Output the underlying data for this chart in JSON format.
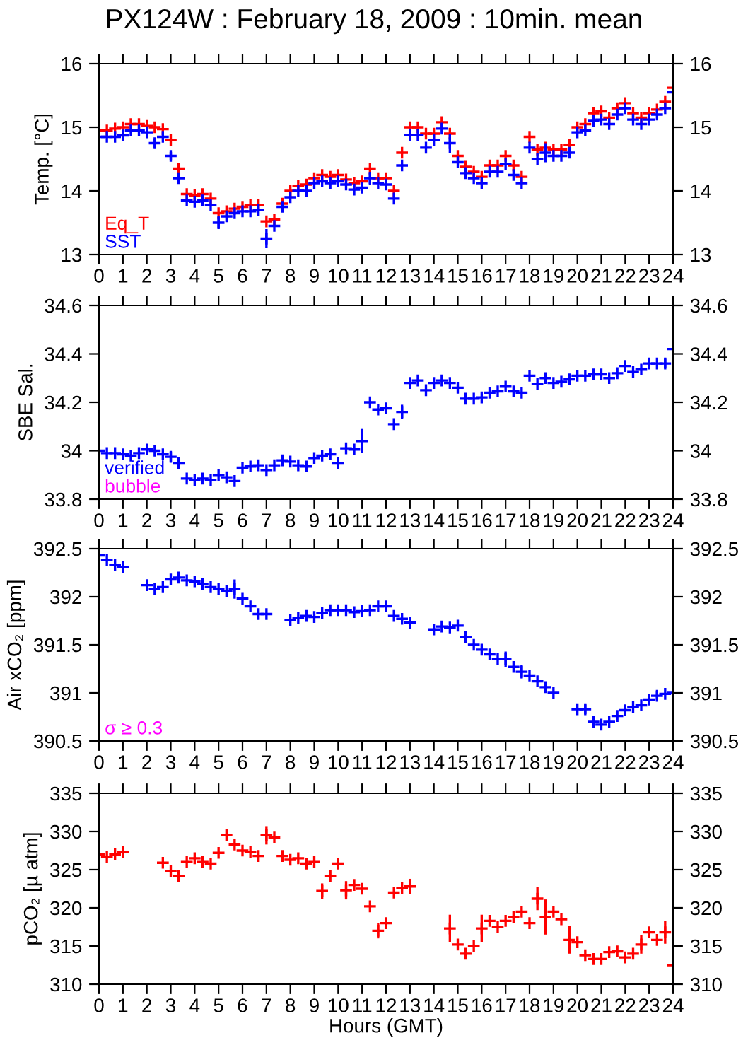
{
  "chart_data": [
    {
      "type": "scatter",
      "title": "PX124W : February 18, 2009 : 10min. mean",
      "ylabel": "Temp. [°C]",
      "marker": "cross",
      "legend": "bottom left",
      "grid": false,
      "x": [
        0,
        0.33,
        0.67,
        1,
        1.33,
        1.67,
        2,
        2.33,
        2.67,
        3,
        3.33,
        3.67,
        4,
        4.33,
        4.67,
        5,
        5.33,
        5.67,
        6,
        6.33,
        6.67,
        7,
        7.33,
        7.67,
        8,
        8.33,
        8.67,
        9,
        9.33,
        9.67,
        10,
        10.33,
        10.67,
        11,
        11.33,
        11.67,
        12,
        12.33,
        12.67,
        13,
        13.33,
        13.67,
        14,
        14.33,
        14.67,
        15,
        15.33,
        15.67,
        16,
        16.33,
        16.67,
        17,
        17.33,
        17.67,
        18,
        18.33,
        18.67,
        19,
        19.33,
        19.67,
        20,
        20.33,
        20.67,
        21,
        21.33,
        21.67,
        22,
        22.33,
        22.67,
        23,
        23.33,
        23.67,
        24
      ],
      "xlim": [
        0,
        24
      ],
      "xticks": [
        0,
        1,
        2,
        3,
        4,
        5,
        6,
        7,
        8,
        9,
        10,
        11,
        12,
        13,
        14,
        15,
        16,
        17,
        18,
        19,
        20,
        21,
        22,
        23,
        24
      ],
      "ylim": [
        13,
        16
      ],
      "yticks": [
        13,
        14,
        15,
        16
      ],
      "y2lim": [
        13,
        16
      ],
      "y2ticks": [
        13,
        14,
        15,
        16
      ],
      "series": [
        {
          "name": "Eq_T",
          "color": "#ff0000",
          "values": [
            14.95,
            14.95,
            14.98,
            15.0,
            15.05,
            15.05,
            15.02,
            15.0,
            14.97,
            14.8,
            14.35,
            13.95,
            13.93,
            13.95,
            13.88,
            13.65,
            13.68,
            13.72,
            13.75,
            13.78,
            13.78,
            13.52,
            13.55,
            13.8,
            14.0,
            14.08,
            14.1,
            14.2,
            14.25,
            14.22,
            14.25,
            14.18,
            14.12,
            14.15,
            14.35,
            14.2,
            14.2,
            14.0,
            14.6,
            15.0,
            15.0,
            14.9,
            14.9,
            15.08,
            14.9,
            14.55,
            14.38,
            14.3,
            14.22,
            14.4,
            14.4,
            14.55,
            14.4,
            14.22,
            14.85,
            14.65,
            14.68,
            14.65,
            14.65,
            14.72,
            15.0,
            15.05,
            15.22,
            15.25,
            15.15,
            15.3,
            15.38,
            15.22,
            15.15,
            15.22,
            15.28,
            15.4,
            15.62
          ]
        },
        {
          "name": "SST",
          "color": "#0000ff",
          "values": [
            14.85,
            14.85,
            14.85,
            14.87,
            14.95,
            14.95,
            14.92,
            14.75,
            14.85,
            14.55,
            14.2,
            13.85,
            13.83,
            13.85,
            13.78,
            13.5,
            13.6,
            13.65,
            13.68,
            13.68,
            13.7,
            13.25,
            13.45,
            13.75,
            13.9,
            14.0,
            14.0,
            14.12,
            14.15,
            14.12,
            14.15,
            14.1,
            14.02,
            14.05,
            14.2,
            14.12,
            14.1,
            13.88,
            14.4,
            14.88,
            14.88,
            14.68,
            14.8,
            14.98,
            14.75,
            14.45,
            14.28,
            14.2,
            14.12,
            14.3,
            14.3,
            14.42,
            14.25,
            14.12,
            14.68,
            14.5,
            14.6,
            14.55,
            14.55,
            14.6,
            14.92,
            14.95,
            15.1,
            15.12,
            15.05,
            15.2,
            15.3,
            15.12,
            15.05,
            15.12,
            15.2,
            15.3,
            15.55
          ],
          "errors": [
            null,
            null,
            null,
            null,
            null,
            null,
            null,
            0.07,
            null,
            0.06,
            null,
            null,
            null,
            null,
            null,
            0.1,
            null,
            null,
            null,
            null,
            null,
            0.15,
            null,
            null,
            null,
            null,
            null,
            null,
            null,
            null,
            null,
            null,
            null,
            null,
            0.1,
            null,
            null,
            null,
            null,
            null,
            null,
            null,
            null,
            null,
            0.15,
            null,
            null,
            null,
            null,
            null,
            null,
            null,
            null,
            null,
            null,
            null,
            0.15,
            null,
            null,
            null,
            null,
            null,
            null,
            null,
            null,
            null,
            null,
            null,
            null,
            null,
            null,
            null,
            null
          ]
        }
      ]
    },
    {
      "type": "scatter",
      "ylabel": "SBE Sal.",
      "marker": "cross",
      "legend": "bottom left",
      "grid": false,
      "x": [
        0,
        0.33,
        0.67,
        1,
        1.33,
        1.67,
        2,
        2.33,
        2.67,
        3,
        3.33,
        3.67,
        4,
        4.33,
        4.67,
        5,
        5.33,
        5.67,
        6,
        6.33,
        6.67,
        7,
        7.33,
        7.67,
        8,
        8.33,
        8.67,
        9,
        9.33,
        9.67,
        10,
        10.33,
        10.67,
        11,
        11.33,
        11.67,
        12,
        12.33,
        12.67,
        13,
        13.33,
        13.67,
        14,
        14.33,
        14.67,
        15,
        15.33,
        15.67,
        16,
        16.33,
        16.67,
        17,
        17.33,
        17.67,
        18,
        18.33,
        18.67,
        19,
        19.33,
        19.67,
        20,
        20.33,
        20.67,
        21,
        21.33,
        21.67,
        22,
        22.33,
        22.67,
        23,
        23.33,
        23.67,
        24
      ],
      "xlim": [
        0,
        24
      ],
      "xticks": [
        0,
        1,
        2,
        3,
        4,
        5,
        6,
        7,
        8,
        9,
        10,
        11,
        12,
        13,
        14,
        15,
        16,
        17,
        18,
        19,
        20,
        21,
        22,
        23,
        24
      ],
      "ylim": [
        33.8,
        34.6
      ],
      "yticks": [
        33.8,
        34,
        34.2,
        34.4,
        34.6
      ],
      "y2lim": [
        33.8,
        34.6
      ],
      "y2ticks": [
        33.8,
        34,
        34.2,
        34.4,
        34.6
      ],
      "series": [
        {
          "name": "verified",
          "color": "#0000ff",
          "values": [
            34.0,
            33.99,
            33.99,
            33.985,
            33.98,
            33.99,
            34.005,
            34.0,
            33.985,
            33.975,
            33.95,
            33.885,
            33.88,
            33.885,
            33.88,
            33.9,
            33.89,
            33.875,
            33.93,
            33.935,
            33.94,
            33.92,
            33.94,
            33.96,
            33.955,
            33.94,
            33.935,
            33.97,
            33.98,
            33.985,
            33.95,
            34.01,
            34.005,
            34.04,
            34.2,
            34.17,
            34.175,
            34.11,
            34.16,
            34.28,
            34.29,
            34.25,
            34.28,
            34.29,
            34.28,
            34.26,
            34.215,
            34.215,
            34.22,
            34.24,
            34.245,
            34.265,
            34.245,
            34.24,
            34.31,
            34.275,
            34.3,
            34.28,
            34.285,
            34.295,
            34.31,
            34.31,
            34.315,
            34.315,
            34.3,
            34.32,
            34.35,
            34.325,
            34.335,
            34.36,
            34.36,
            34.36,
            34.42
          ],
          "errors": [
            null,
            null,
            null,
            null,
            null,
            null,
            null,
            null,
            null,
            0.02,
            null,
            null,
            null,
            null,
            null,
            null,
            null,
            null,
            null,
            null,
            null,
            null,
            null,
            null,
            null,
            null,
            null,
            null,
            null,
            null,
            null,
            null,
            null,
            0.05,
            null,
            null,
            null,
            null,
            0.03,
            null,
            null,
            null,
            null,
            null,
            null,
            null,
            null,
            null,
            null,
            null,
            null,
            null,
            null,
            null,
            null,
            null,
            null,
            null,
            null,
            null,
            null,
            null,
            null,
            null,
            null,
            null,
            0.02,
            null,
            null,
            null,
            null,
            0.02,
            null
          ]
        }
      ],
      "annotations": [
        "bubble"
      ]
    },
    {
      "type": "scatter",
      "ylabel": "Air xCO₂ [ppm]",
      "marker": "cross",
      "grid": false,
      "x": [
        0,
        0.33,
        0.67,
        1,
        1.33,
        1.67,
        2,
        2.33,
        2.67,
        3,
        3.33,
        3.67,
        4,
        4.33,
        4.67,
        5,
        5.33,
        5.67,
        6,
        6.33,
        6.67,
        7,
        7.33,
        7.67,
        8,
        8.33,
        8.67,
        9,
        9.33,
        9.67,
        10,
        10.33,
        10.67,
        11,
        11.33,
        11.67,
        12,
        12.33,
        12.67,
        13,
        13.33,
        13.67,
        14,
        14.33,
        14.67,
        15,
        15.33,
        15.67,
        16,
        16.33,
        16.67,
        17,
        17.33,
        17.67,
        18,
        18.33,
        18.67,
        19,
        19.33,
        19.67,
        20,
        20.33,
        20.67,
        21,
        21.33,
        21.67,
        22,
        22.33,
        22.67,
        23,
        23.33,
        23.67,
        24
      ],
      "xlim": [
        0,
        24
      ],
      "xticks": [
        0,
        1,
        2,
        3,
        4,
        5,
        6,
        7,
        8,
        9,
        10,
        11,
        12,
        13,
        14,
        15,
        16,
        17,
        18,
        19,
        20,
        21,
        22,
        23,
        24
      ],
      "ylim": [
        390.5,
        392.5
      ],
      "yticks": [
        390.5,
        391,
        391.5,
        392,
        392.5
      ],
      "y2lim": [
        390.5,
        392.5
      ],
      "y2ticks": [
        390.5,
        391,
        391.5,
        392,
        392.5
      ],
      "series": [
        {
          "color": "#0000ff",
          "values": [
            392.43,
            392.38,
            392.33,
            392.31,
            null,
            null,
            392.12,
            392.08,
            392.1,
            392.18,
            392.2,
            392.17,
            392.16,
            392.13,
            392.1,
            392.08,
            392.06,
            392.08,
            391.98,
            391.9,
            391.82,
            391.82,
            null,
            null,
            391.76,
            391.78,
            391.8,
            391.79,
            391.83,
            391.86,
            391.86,
            391.86,
            391.84,
            391.85,
            391.86,
            391.9,
            391.9,
            391.8,
            391.77,
            391.73,
            null,
            null,
            391.66,
            391.69,
            391.68,
            391.7,
            391.58,
            391.5,
            391.45,
            391.4,
            391.35,
            391.35,
            391.27,
            391.22,
            391.18,
            391.12,
            391.06,
            391.0,
            null,
            null,
            390.83,
            390.83,
            390.7,
            390.67,
            390.7,
            390.76,
            390.82,
            390.85,
            390.87,
            390.93,
            390.97,
            390.99,
            391.0
          ],
          "errors": [
            null,
            null,
            null,
            null,
            null,
            null,
            null,
            null,
            null,
            null,
            null,
            null,
            null,
            null,
            null,
            null,
            null,
            0.1,
            null,
            null,
            null,
            null,
            null,
            null,
            null,
            null,
            null,
            null,
            null,
            null,
            null,
            null,
            null,
            null,
            null,
            null,
            null,
            null,
            null,
            null,
            null,
            null,
            null,
            null,
            null,
            null,
            null,
            null,
            null,
            null,
            null,
            0.08,
            null,
            0.07,
            null,
            null,
            null,
            null,
            null,
            null,
            null,
            0.05,
            null,
            null,
            null,
            null,
            null,
            null,
            null,
            null,
            0.05,
            null,
            null
          ]
        }
      ],
      "annotations": [
        "σ ≥ 0.3"
      ]
    },
    {
      "type": "scatter",
      "ylabel": "pCO₂ [µ atm]",
      "xlabel": "Hours (GMT)",
      "marker": "cross",
      "grid": false,
      "x": [
        0,
        0.33,
        0.67,
        1,
        1.33,
        1.67,
        2,
        2.33,
        2.67,
        3,
        3.33,
        3.67,
        4,
        4.33,
        4.67,
        5,
        5.33,
        5.67,
        6,
        6.33,
        6.67,
        7,
        7.33,
        7.67,
        8,
        8.33,
        8.67,
        9,
        9.33,
        9.67,
        10,
        10.33,
        10.67,
        11,
        11.33,
        11.67,
        12,
        12.33,
        12.67,
        13,
        13.33,
        13.67,
        14,
        14.33,
        14.67,
        15,
        15.33,
        15.67,
        16,
        16.33,
        16.67,
        17,
        17.33,
        17.67,
        18,
        18.33,
        18.67,
        19,
        19.33,
        19.67,
        20,
        20.33,
        20.67,
        21,
        21.33,
        21.67,
        22,
        22.33,
        22.67,
        23,
        23.33,
        23.67,
        24
      ],
      "xlim": [
        0,
        24
      ],
      "xticks": [
        0,
        1,
        2,
        3,
        4,
        5,
        6,
        7,
        8,
        9,
        10,
        11,
        12,
        13,
        14,
        15,
        16,
        17,
        18,
        19,
        20,
        21,
        22,
        23,
        24
      ],
      "ylim": [
        310,
        335
      ],
      "yticks": [
        310,
        315,
        320,
        325,
        330,
        335
      ],
      "y2lim": [
        310,
        335
      ],
      "y2ticks": [
        310,
        315,
        320,
        325,
        330,
        335
      ],
      "series": [
        {
          "color": "#ff0000",
          "values": [
            327.0,
            326.7,
            327.0,
            327.3,
            null,
            null,
            null,
            null,
            325.9,
            324.8,
            324.2,
            326.0,
            326.5,
            326.0,
            325.8,
            327.2,
            329.5,
            328.3,
            327.5,
            327.3,
            326.8,
            329.5,
            329.2,
            326.8,
            326.3,
            326.5,
            325.8,
            326.0,
            322.2,
            324.2,
            325.8,
            322.3,
            323.0,
            322.5,
            320.2,
            317.0,
            318.0,
            322.0,
            322.6,
            322.8,
            null,
            null,
            null,
            null,
            317.3,
            315.2,
            314.0,
            315.0,
            317.3,
            318.3,
            317.5,
            318.3,
            318.8,
            319.5,
            318.0,
            321.2,
            318.8,
            319.5,
            318.5,
            315.8,
            315.5,
            313.8,
            313.3,
            313.3,
            314.2,
            314.3,
            313.5,
            314.0,
            315.2,
            316.8,
            315.8,
            316.8,
            312.5
          ],
          "errors": [
            null,
            null,
            null,
            null,
            null,
            null,
            null,
            null,
            null,
            null,
            null,
            null,
            null,
            null,
            null,
            null,
            null,
            null,
            null,
            null,
            null,
            1.2,
            null,
            null,
            null,
            null,
            null,
            null,
            1.0,
            null,
            null,
            1.2,
            null,
            null,
            null,
            1.0,
            null,
            null,
            null,
            1.0,
            null,
            null,
            null,
            null,
            1.8,
            null,
            null,
            null,
            1.8,
            null,
            null,
            null,
            null,
            null,
            null,
            1.5,
            2.3,
            null,
            null,
            1.8,
            null,
            null,
            null,
            null,
            null,
            null,
            null,
            null,
            1.2,
            null,
            null,
            1.5,
            0.8
          ]
        }
      ]
    }
  ]
}
